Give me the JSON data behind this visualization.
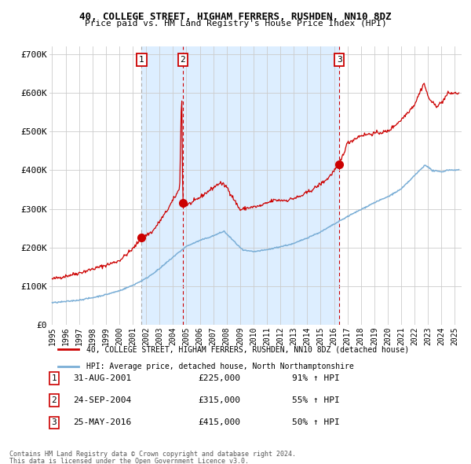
{
  "title1": "40, COLLEGE STREET, HIGHAM FERRERS, RUSHDEN, NN10 8DZ",
  "title2": "Price paid vs. HM Land Registry's House Price Index (HPI)",
  "ylim": [
    0,
    720000
  ],
  "xlim_start": 1994.8,
  "xlim_end": 2025.5,
  "yticks": [
    0,
    100000,
    200000,
    300000,
    400000,
    500000,
    600000,
    700000
  ],
  "ytick_labels": [
    "£0",
    "£100K",
    "£200K",
    "£300K",
    "£400K",
    "£500K",
    "£600K",
    "£700K"
  ],
  "xtick_years": [
    1995,
    1996,
    1997,
    1998,
    1999,
    2000,
    2001,
    2002,
    2003,
    2004,
    2005,
    2006,
    2007,
    2008,
    2009,
    2010,
    2011,
    2012,
    2013,
    2014,
    2015,
    2016,
    2017,
    2018,
    2019,
    2020,
    2021,
    2022,
    2023,
    2024,
    2025
  ],
  "sale_dates": [
    2001.664,
    2004.729,
    2016.389
  ],
  "sale_prices": [
    225000,
    315000,
    415000
  ],
  "sale_labels": [
    "1",
    "2",
    "3"
  ],
  "sale_date_strs": [
    "31-AUG-2001",
    "24-SEP-2004",
    "25-MAY-2016"
  ],
  "sale_price_strs": [
    "£225,000",
    "£315,000",
    "£415,000"
  ],
  "sale_hpi_strs": [
    "91% ↑ HPI",
    "55% ↑ HPI",
    "50% ↑ HPI"
  ],
  "legend_line1": "40, COLLEGE STREET, HIGHAM FERRERS, RUSHDEN, NN10 8DZ (detached house)",
  "legend_line2": "HPI: Average price, detached house, North Northamptonshire",
  "footnote1": "Contains HM Land Registry data © Crown copyright and database right 2024.",
  "footnote2": "This data is licensed under the Open Government Licence v3.0.",
  "line_color_red": "#cc0000",
  "line_color_blue": "#7aaed6",
  "bg_color": "#ffffff",
  "grid_color": "#cccccc",
  "shaded_color": "#ddeeff",
  "dashed_vline_color_gray": "#aaaaaa",
  "dashed_vline_color_red": "#cc0000"
}
